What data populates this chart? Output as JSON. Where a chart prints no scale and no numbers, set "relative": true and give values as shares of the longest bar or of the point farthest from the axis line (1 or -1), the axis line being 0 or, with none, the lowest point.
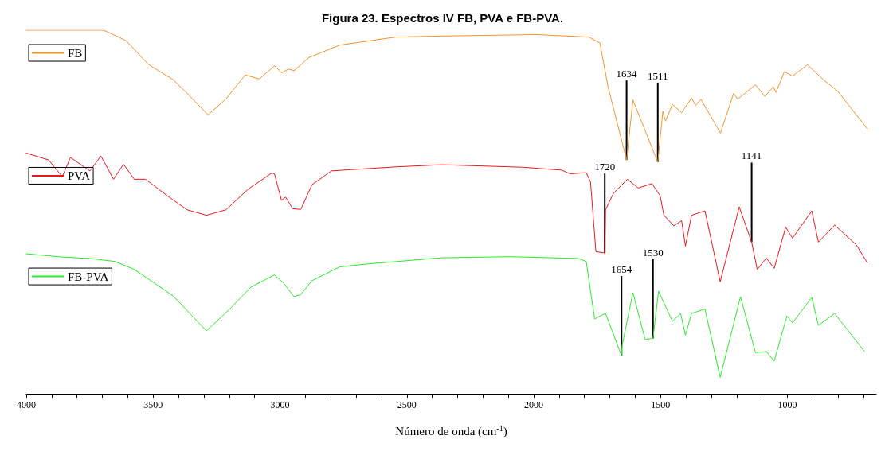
{
  "chart_data": {
    "type": "line",
    "title": "Figura 23. Espectros IV FB, PVA e FB-PVA.",
    "xlabel": "Número de onda (cm$^{-1}$)",
    "relative": true,
    "legend": "top left",
    "grid": false,
    "marker": "none",
    "line_style": "solid",
    "xlim": [
      4000,
      650
    ],
    "xticks": [
      4000,
      {
        "value": 3900,
        "label": null
      },
      {
        "value": 3800,
        "label": null
      },
      {
        "value": 3700,
        "label": null
      },
      {
        "value": 3600,
        "label": null
      },
      3500,
      {
        "value": 3400,
        "label": null
      },
      {
        "value": 3300,
        "label": null
      },
      {
        "value": 3200,
        "label": null
      },
      {
        "value": 3100,
        "label": null
      },
      3000,
      {
        "value": 2900,
        "label": null
      },
      {
        "value": 2800,
        "label": null
      },
      {
        "value": 2700,
        "label": null
      },
      {
        "value": 2600,
        "label": null
      },
      2500,
      {
        "value": 2400,
        "label": null
      },
      {
        "value": 2300,
        "label": null
      },
      {
        "value": 2200,
        "label": null
      },
      {
        "value": 2100,
        "label": null
      },
      2000,
      {
        "value": 1900,
        "label": null
      },
      {
        "value": 1800,
        "label": null
      },
      {
        "value": 1700,
        "label": null
      },
      {
        "value": 1600,
        "label": null
      },
      1500,
      {
        "value": 1400,
        "label": null
      },
      {
        "value": 1300,
        "label": null
      },
      {
        "value": 1200,
        "label": null
      },
      {
        "value": 1100,
        "label": null
      },
      1000,
      {
        "value": 900,
        "label": null
      },
      {
        "value": 800,
        "label": null
      },
      {
        "value": 700,
        "label": null
      }
    ],
    "annotations": [
      {
        "text": "1634",
        "x": 1634,
        "y": 0.643
      },
      {
        "text": "1511",
        "x": 1511,
        "y": 0.637
      },
      {
        "text": "1720",
        "x": 1720,
        "y": 0.387
      },
      {
        "text": "1141",
        "x": 1141,
        "y": 0.417
      },
      {
        "text": "1654",
        "x": 1654,
        "y": 0.105
      },
      {
        "text": "1530",
        "x": 1530,
        "y": 0.152
      }
    ],
    "series": [
      {
        "name": "FB",
        "color": "#f0932b",
        "x": [
          4000,
          3694,
          3606,
          3519,
          3421,
          3354,
          3284,
          3213,
          3137,
          3082,
          3021,
          2994,
          2967,
          2944,
          2886,
          2765,
          2546,
          2362,
          1986,
          1782,
          1739,
          1707,
          1634,
          1609,
          1511,
          1491,
          1481,
          1453,
          1417,
          1378,
          1362,
          1341,
          1264,
          1212,
          1196,
          1126,
          1089,
          1055,
          1045,
          1012,
          980,
          921,
          857,
          803,
          685
        ],
        "values": [
          1,
          1,
          0.971,
          0.906,
          0.864,
          0.818,
          0.767,
          0.811,
          0.877,
          0.866,
          0.902,
          0.883,
          0.893,
          0.889,
          0.925,
          0.959,
          0.981,
          0.984,
          0.988,
          0.981,
          0.965,
          0.844,
          0.643,
          0.808,
          0.637,
          0.777,
          0.75,
          0.796,
          0.773,
          0.814,
          0.793,
          0.81,
          0.717,
          0.826,
          0.81,
          0.85,
          0.818,
          0.844,
          0.829,
          0.886,
          0.874,
          0.905,
          0.863,
          0.833,
          0.729
        ]
      },
      {
        "name": "PVA",
        "color": "#e8191c",
        "x": [
          4000,
          3912,
          3858,
          3826,
          3749,
          3706,
          3656,
          3617,
          3574,
          3530,
          3443,
          3366,
          3290,
          3213,
          3125,
          3033,
          3022,
          2994,
          2978,
          2950,
          2918,
          2874,
          2797,
          2546,
          2362,
          2041,
          1889,
          1857,
          1793,
          1776,
          1755,
          1720,
          1717,
          1686,
          1631,
          1588,
          1534,
          1502,
          1487,
          1448,
          1417,
          1402,
          1378,
          1325,
          1265,
          1190,
          1141,
          1119,
          1083,
          1052,
          1007,
          980,
          904,
          878,
          814,
          728,
          685
        ],
        "values": [
          0.662,
          0.643,
          0.597,
          0.65,
          0.613,
          0.654,
          0.59,
          0.631,
          0.59,
          0.59,
          0.544,
          0.506,
          0.491,
          0.506,
          0.563,
          0.607,
          0.605,
          0.532,
          0.541,
          0.509,
          0.507,
          0.575,
          0.613,
          0.624,
          0.63,
          0.623,
          0.615,
          0.605,
          0.608,
          0.582,
          0.391,
          0.387,
          0.506,
          0.551,
          0.59,
          0.566,
          0.578,
          0.545,
          0.491,
          0.462,
          0.476,
          0.406,
          0.491,
          0.503,
          0.308,
          0.514,
          0.417,
          0.342,
          0.373,
          0.345,
          0.458,
          0.428,
          0.503,
          0.417,
          0.464,
          0.409,
          0.36
        ]
      },
      {
        "name": "FB-PVA",
        "color": "#2ee82e",
        "x": [
          4000,
          3858,
          3749,
          3651,
          3574,
          3421,
          3290,
          3201,
          3115,
          3022,
          2984,
          2945,
          2918,
          2874,
          2765,
          2656,
          2362,
          2093,
          1825,
          1793,
          1760,
          1717,
          1654,
          1652,
          1609,
          1561,
          1530,
          1508,
          1453,
          1421,
          1402,
          1378,
          1325,
          1265,
          1185,
          1126,
          1083,
          1052,
          1002,
          980,
          904,
          878,
          814,
          696
        ],
        "values": [
          0.385,
          0.376,
          0.372,
          0.364,
          0.342,
          0.269,
          0.173,
          0.231,
          0.293,
          0.327,
          0.303,
          0.267,
          0.273,
          0.311,
          0.349,
          0.357,
          0.374,
          0.377,
          0.372,
          0.364,
          0.206,
          0.221,
          0.105,
          0.131,
          0.278,
          0.15,
          0.152,
          0.282,
          0.199,
          0.221,
          0.161,
          0.221,
          0.233,
          0.045,
          0.267,
          0.113,
          0.116,
          0.09,
          0.214,
          0.195,
          0.265,
          0.188,
          0.221,
          0.116
        ]
      }
    ]
  }
}
